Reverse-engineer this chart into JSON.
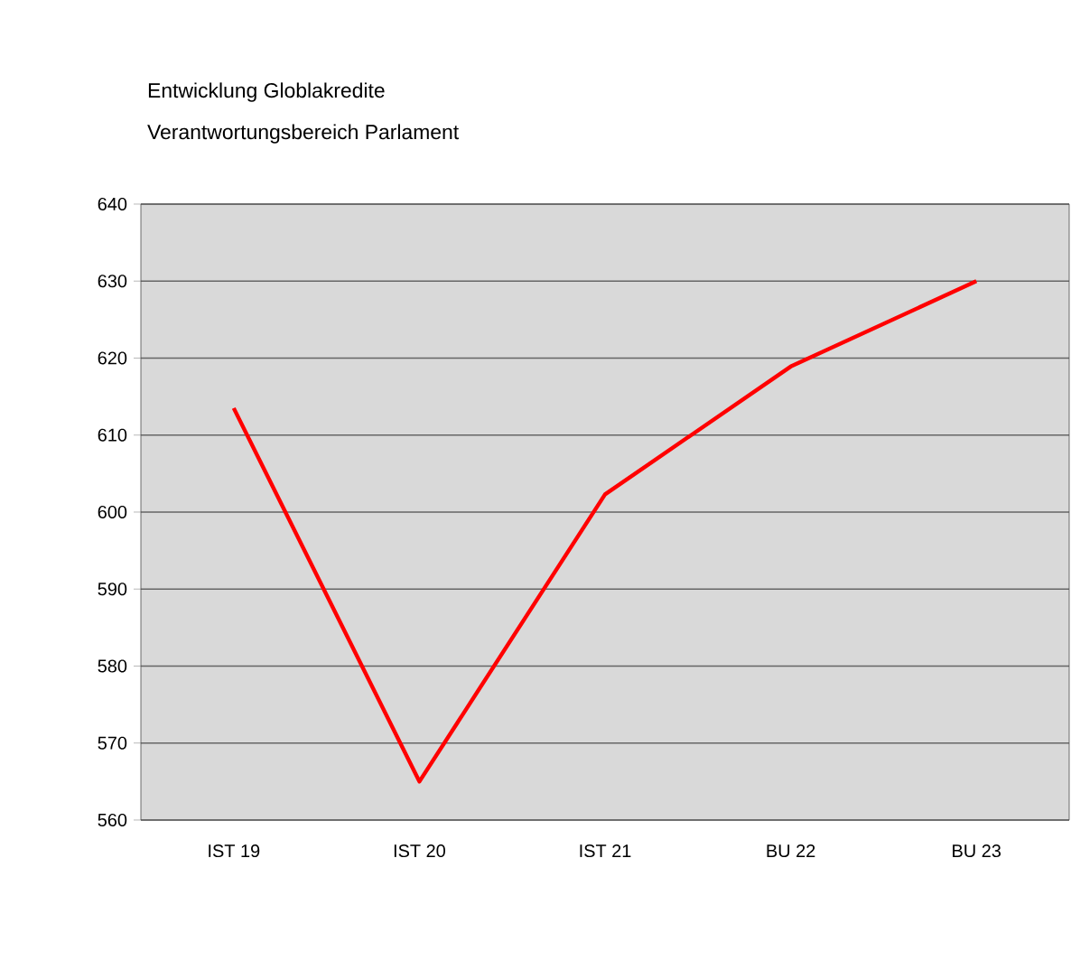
{
  "chart_data": {
    "type": "line",
    "title": "Entwicklung Globlakredite",
    "subtitle": "Verantwortungsbereich Parlament",
    "categories": [
      "IST 19",
      "IST 20",
      "IST 21",
      "BU 22",
      "BU 23"
    ],
    "series": [
      {
        "color": "#ff0000",
        "values": [
          613.5,
          565,
          602.3,
          618.9,
          630
        ]
      }
    ],
    "ylim": [
      560,
      640
    ],
    "yticks": [
      560,
      570,
      580,
      590,
      600,
      610,
      620,
      630,
      640
    ],
    "grid": "y",
    "marker": "none",
    "line_style": "solid"
  }
}
